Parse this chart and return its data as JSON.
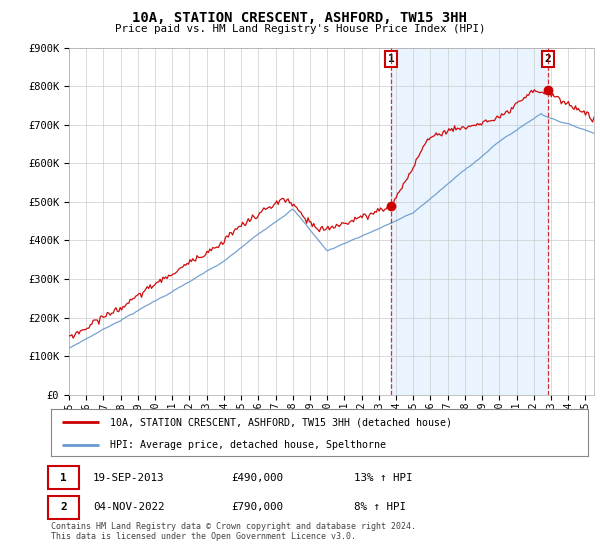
{
  "title": "10A, STATION CRESCENT, ASHFORD, TW15 3HH",
  "subtitle": "Price paid vs. HM Land Registry's House Price Index (HPI)",
  "ylim": [
    0,
    900000
  ],
  "yticks": [
    0,
    100000,
    200000,
    300000,
    400000,
    500000,
    600000,
    700000,
    800000,
    900000
  ],
  "ytick_labels": [
    "£0",
    "£100K",
    "£200K",
    "£300K",
    "£400K",
    "£500K",
    "£600K",
    "£700K",
    "£800K",
    "£900K"
  ],
  "xlim_start": 1995.0,
  "xlim_end": 2025.5,
  "red_line_label": "10A, STATION CRESCENT, ASHFORD, TW15 3HH (detached house)",
  "blue_line_label": "HPI: Average price, detached house, Spelthorne",
  "point1_x": 2013.72,
  "point1_y": 490000,
  "point2_x": 2022.84,
  "point2_y": 790000,
  "red_color": "#cc0000",
  "blue_color": "#6699cc",
  "fill_color": "#ddeeff",
  "grid_color": "#cccccc",
  "background_color": "#ffffff",
  "point1_date": "19-SEP-2013",
  "point1_price": "£490,000",
  "point1_hpi": "13% ↑ HPI",
  "point2_date": "04-NOV-2022",
  "point2_price": "£790,000",
  "point2_hpi": "8% ↑ HPI",
  "footer": "Contains HM Land Registry data © Crown copyright and database right 2024.\nThis data is licensed under the Open Government Licence v3.0."
}
